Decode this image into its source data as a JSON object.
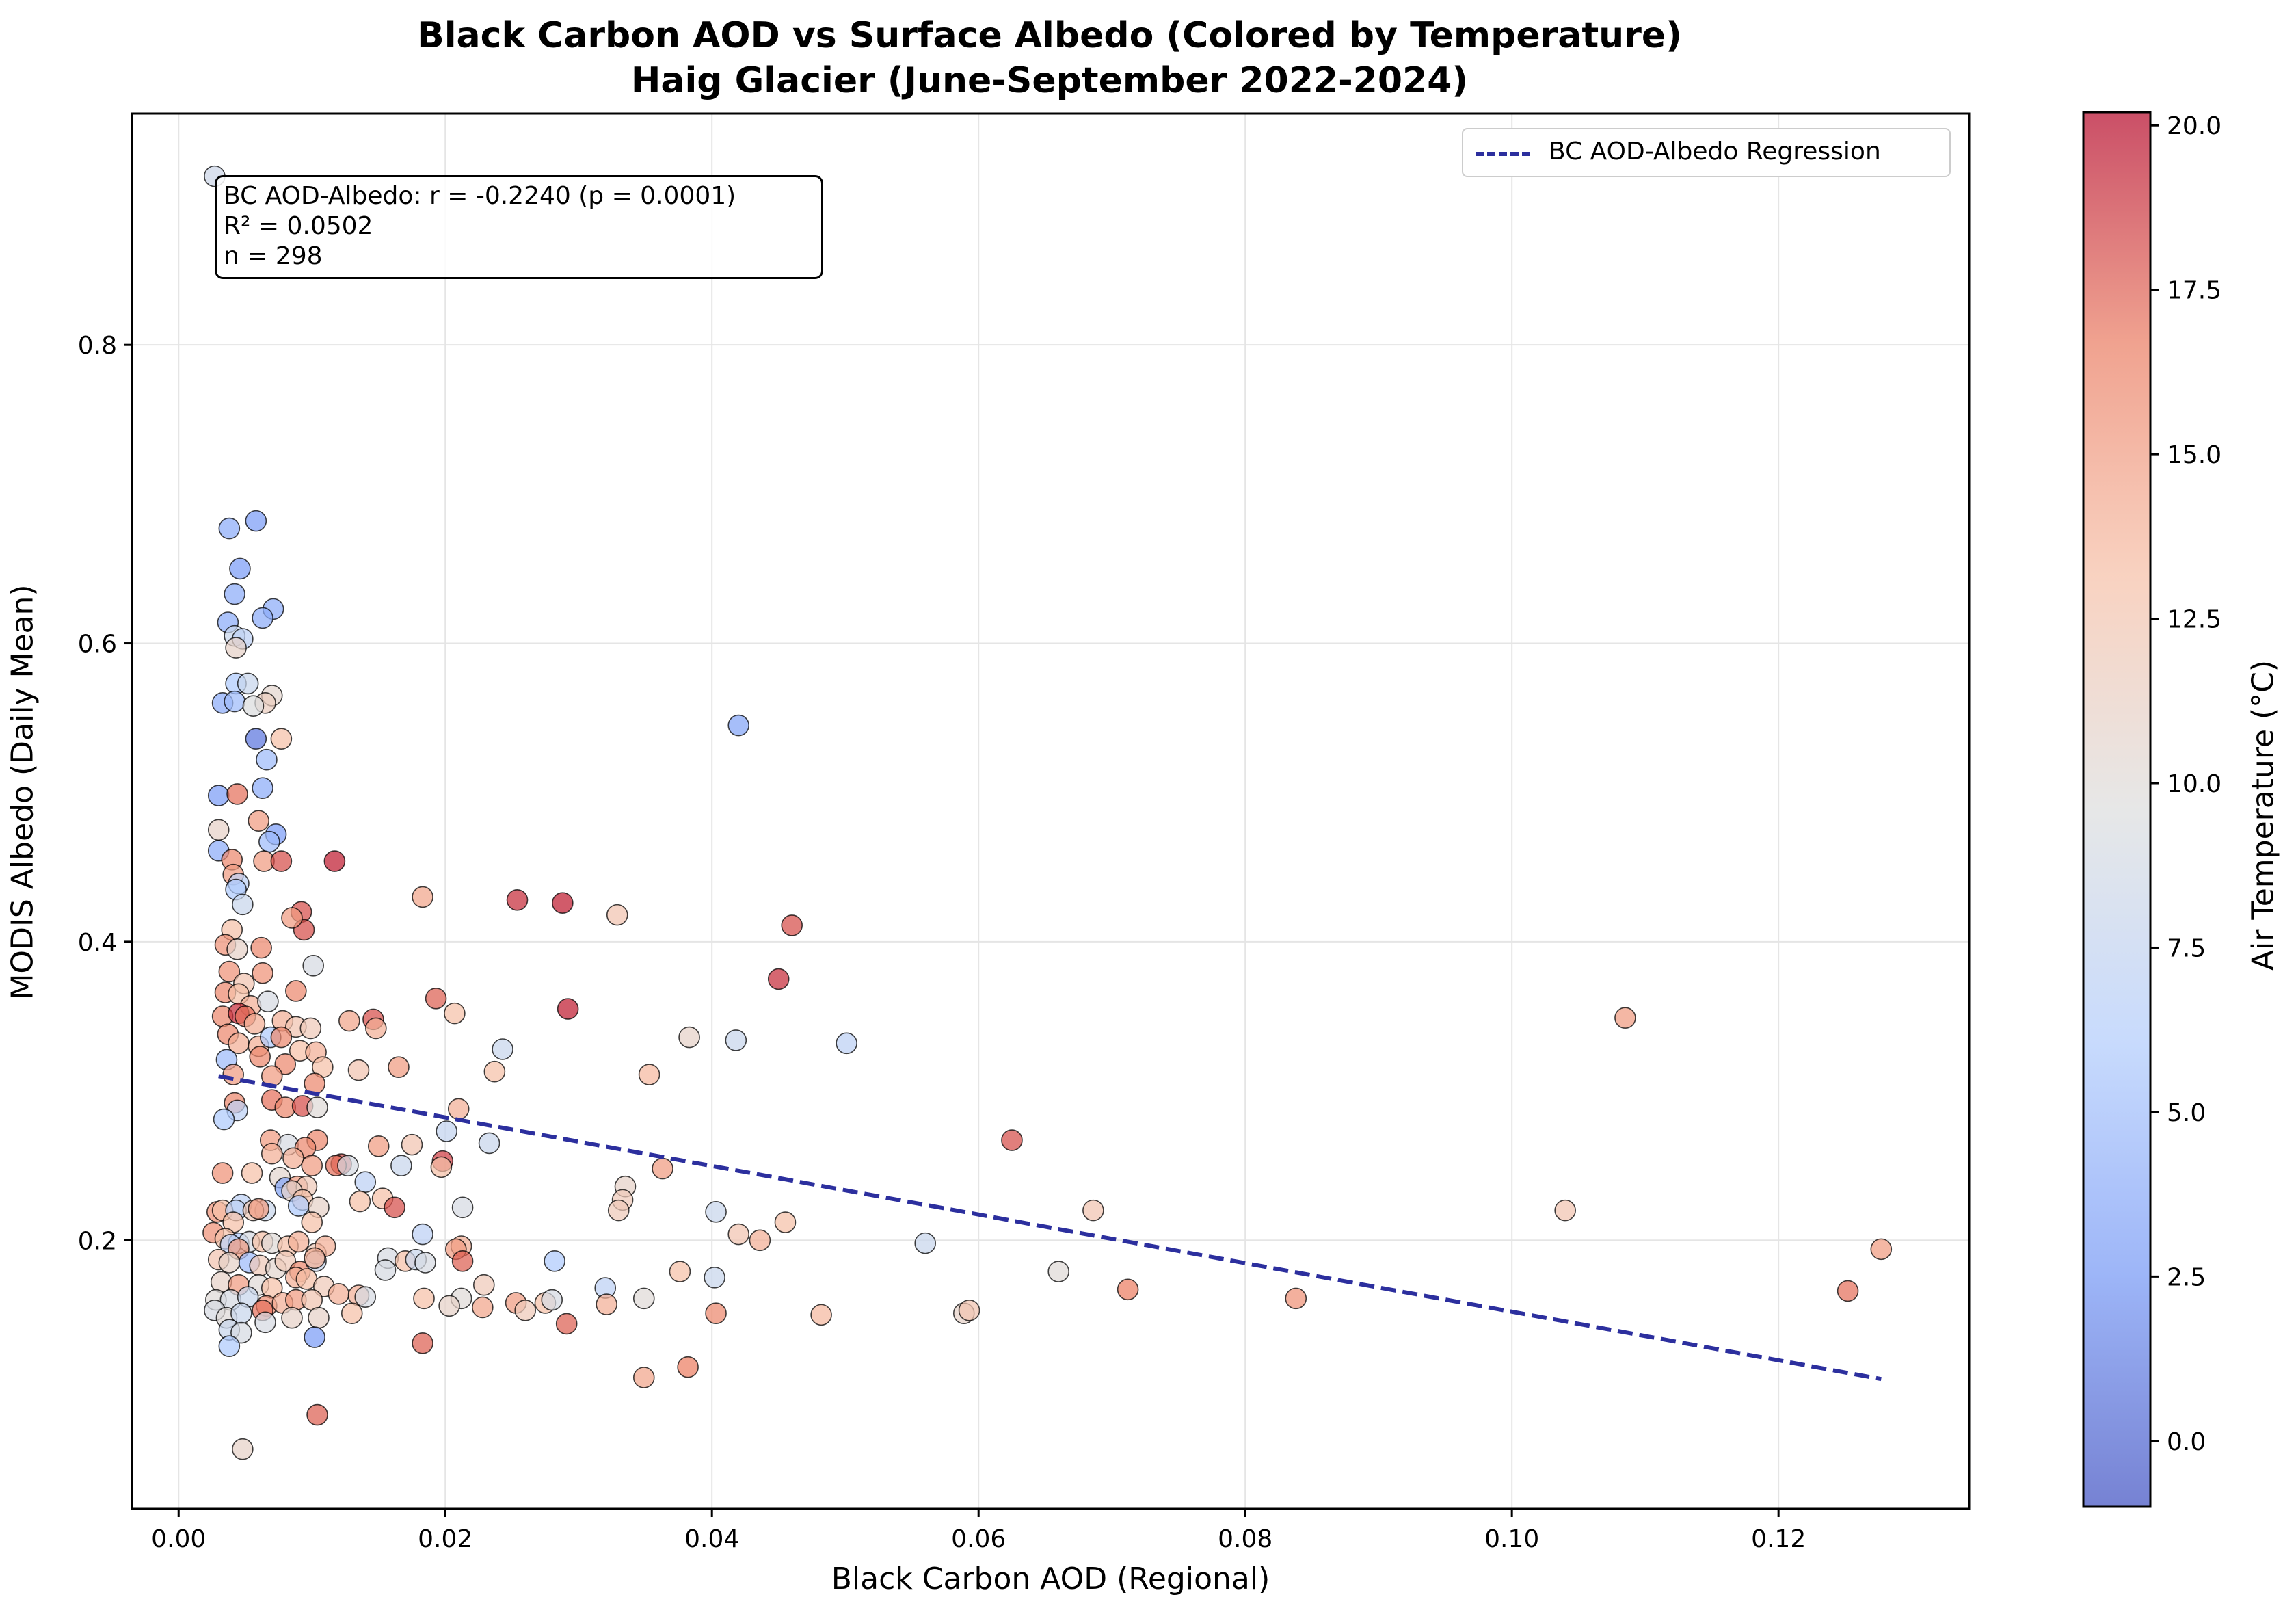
{
  "chart_data": {
    "type": "scatter",
    "title": "Black Carbon AOD vs Surface Albedo (Colored by Temperature)",
    "subtitle": "Haig Glacier (June-September 2022-2024)",
    "xlabel": "Black Carbon AOD (Regional)",
    "ylabel": "MODIS Albedo (Daily Mean)",
    "colorbar_label": "Air Temperature (°C)",
    "colormap": "coolwarm",
    "colormap_stops": [
      "#3b4cc0",
      "#7396f5",
      "#b0cbfc",
      "#dcdddd",
      "#f6bfa6",
      "#ea7b60",
      "#b40426"
    ],
    "colorbar_range": [
      -1.0,
      20.2
    ],
    "colorbar_ticks": [
      "0.0",
      "2.5",
      "5.0",
      "7.5",
      "10.0",
      "12.5",
      "15.0",
      "17.5",
      "20.0"
    ],
    "xlim": [
      -0.0035,
      0.1343
    ],
    "ylim": [
      0.02,
      0.955
    ],
    "x_ticks": [
      "0.00",
      "0.02",
      "0.04",
      "0.06",
      "0.08",
      "0.10",
      "0.12"
    ],
    "y_ticks": [
      "0.2",
      "0.4",
      "0.6",
      "0.8"
    ],
    "grid": true,
    "legend_position": "top-right",
    "legend": [
      {
        "label": "BC AOD-Albedo Regression",
        "color": "#2c2f9e",
        "style": "dashed"
      }
    ],
    "stats_lines": [
      "BC AOD-Albedo: r = -0.2240 (p = 0.0001)",
      "R² = 0.0502",
      "n = 298"
    ],
    "regression": {
      "x": [
        0.003,
        0.1277
      ],
      "y": [
        0.31,
        0.107
      ]
    },
    "points": [
      [
        0.0027,
        0.913,
        8.3
      ],
      [
        0.0058,
        0.682,
        3.0
      ],
      [
        0.0038,
        0.677,
        4.0
      ],
      [
        0.0046,
        0.65,
        3.0
      ],
      [
        0.0042,
        0.633,
        4.0
      ],
      [
        0.0071,
        0.623,
        4.0
      ],
      [
        0.0063,
        0.617,
        4.0
      ],
      [
        0.0037,
        0.614,
        4.0
      ],
      [
        0.0042,
        0.605,
        8.0
      ],
      [
        0.0048,
        0.603,
        7.0
      ],
      [
        0.0043,
        0.597,
        11.0
      ],
      [
        0.0043,
        0.573,
        6.0
      ],
      [
        0.0052,
        0.573,
        8.0
      ],
      [
        0.007,
        0.565,
        10.5
      ],
      [
        0.0033,
        0.56,
        4.0
      ],
      [
        0.0065,
        0.56,
        11.5
      ],
      [
        0.0042,
        0.561,
        5.0
      ],
      [
        0.0056,
        0.558,
        9.5
      ],
      [
        0.0058,
        0.536,
        1.0
      ],
      [
        0.0077,
        0.536,
        13.0
      ],
      [
        0.0066,
        0.522,
        5.0
      ],
      [
        0.003,
        0.498,
        3.0
      ],
      [
        0.0044,
        0.499,
        17.0
      ],
      [
        0.0063,
        0.503,
        4.0
      ],
      [
        0.006,
        0.481,
        15.0
      ],
      [
        0.0073,
        0.472,
        3.0
      ],
      [
        0.0068,
        0.467,
        5.0
      ],
      [
        0.003,
        0.475,
        11.0
      ],
      [
        0.003,
        0.461,
        4.0
      ],
      [
        0.004,
        0.455,
        16.0
      ],
      [
        0.0064,
        0.454,
        15.0
      ],
      [
        0.0077,
        0.454,
        18.0
      ],
      [
        0.0117,
        0.454,
        19.5
      ],
      [
        0.0041,
        0.445,
        15.0
      ],
      [
        0.0045,
        0.439,
        7.0
      ],
      [
        0.0043,
        0.435,
        6.0
      ],
      [
        0.0048,
        0.425,
        8.0
      ],
      [
        0.004,
        0.408,
        13.0
      ],
      [
        0.0092,
        0.42,
        18.0
      ],
      [
        0.0094,
        0.408,
        18.0
      ],
      [
        0.0085,
        0.416,
        15.0
      ],
      [
        0.0035,
        0.398,
        15.5
      ],
      [
        0.0044,
        0.395,
        11.0
      ],
      [
        0.0062,
        0.396,
        16.0
      ],
      [
        0.0101,
        0.384,
        9.0
      ],
      [
        0.0038,
        0.38,
        15.5
      ],
      [
        0.0049,
        0.372,
        12.5
      ],
      [
        0.0063,
        0.379,
        15.5
      ],
      [
        0.0035,
        0.366,
        16.0
      ],
      [
        0.0045,
        0.365,
        13.0
      ],
      [
        0.0054,
        0.357,
        14.0
      ],
      [
        0.0088,
        0.367,
        16.0
      ],
      [
        0.0067,
        0.36,
        9.0
      ],
      [
        0.0033,
        0.35,
        16.0
      ],
      [
        0.0045,
        0.352,
        19.0
      ],
      [
        0.005,
        0.35,
        17.0
      ],
      [
        0.0057,
        0.345,
        14.0
      ],
      [
        0.0078,
        0.347,
        14.0
      ],
      [
        0.0088,
        0.343,
        12.5
      ],
      [
        0.0099,
        0.342,
        12.0
      ],
      [
        0.0037,
        0.338,
        16.0
      ],
      [
        0.0045,
        0.332,
        14.0
      ],
      [
        0.006,
        0.33,
        14.0
      ],
      [
        0.0069,
        0.336,
        6.0
      ],
      [
        0.0077,
        0.336,
        16.0
      ],
      [
        0.0091,
        0.327,
        13.0
      ],
      [
        0.0103,
        0.326,
        14.0
      ],
      [
        0.0036,
        0.321,
        5.0
      ],
      [
        0.0061,
        0.323,
        16.0
      ],
      [
        0.008,
        0.318,
        16.0
      ],
      [
        0.0108,
        0.316,
        13.0
      ],
      [
        0.0135,
        0.314,
        12.5
      ],
      [
        0.0128,
        0.347,
        14.5
      ],
      [
        0.0146,
        0.348,
        18.0
      ],
      [
        0.0148,
        0.342,
        14.0
      ],
      [
        0.0165,
        0.316,
        15.0
      ],
      [
        0.0041,
        0.311,
        15.0
      ],
      [
        0.007,
        0.31,
        15.0
      ],
      [
        0.0102,
        0.305,
        16.0
      ],
      [
        0.0042,
        0.292,
        16.0
      ],
      [
        0.007,
        0.294,
        17.0
      ],
      [
        0.008,
        0.289,
        16.0
      ],
      [
        0.0093,
        0.29,
        18.0
      ],
      [
        0.0104,
        0.289,
        10.0
      ],
      [
        0.0044,
        0.287,
        7.0
      ],
      [
        0.0034,
        0.281,
        6.0
      ],
      [
        0.0069,
        0.267,
        15.0
      ],
      [
        0.0104,
        0.267,
        16.0
      ],
      [
        0.0082,
        0.264,
        9.0
      ],
      [
        0.0095,
        0.262,
        16.0
      ],
      [
        0.007,
        0.258,
        14.0
      ],
      [
        0.0086,
        0.255,
        14.0
      ],
      [
        0.01,
        0.25,
        15.0
      ],
      [
        0.0122,
        0.251,
        18.0
      ],
      [
        0.0118,
        0.25,
        17.0
      ],
      [
        0.0127,
        0.25,
        9.0
      ],
      [
        0.0033,
        0.245,
        15.5
      ],
      [
        0.0055,
        0.245,
        13.0
      ],
      [
        0.0076,
        0.242,
        10.5
      ],
      [
        0.008,
        0.235,
        3.5
      ],
      [
        0.0089,
        0.236,
        15.0
      ],
      [
        0.0096,
        0.236,
        12.0
      ],
      [
        0.014,
        0.239,
        7.0
      ],
      [
        0.0085,
        0.233,
        11.0
      ],
      [
        0.0093,
        0.227,
        13.0
      ],
      [
        0.0047,
        0.224,
        7.0
      ],
      [
        0.0065,
        0.22,
        8.0
      ],
      [
        0.009,
        0.223,
        6.0
      ],
      [
        0.0105,
        0.222,
        11.0
      ],
      [
        0.0136,
        0.226,
        13.0
      ],
      [
        0.0153,
        0.228,
        13.0
      ],
      [
        0.0162,
        0.222,
        18.0
      ],
      [
        0.0029,
        0.219,
        15.5
      ],
      [
        0.0033,
        0.22,
        13.0
      ],
      [
        0.0043,
        0.22,
        7.0
      ],
      [
        0.0056,
        0.22,
        12.0
      ],
      [
        0.006,
        0.221,
        15.0
      ],
      [
        0.01,
        0.212,
        13.0
      ],
      [
        0.0041,
        0.212,
        13.0
      ],
      [
        0.0026,
        0.205,
        15.5
      ],
      [
        0.0035,
        0.201,
        13.0
      ],
      [
        0.0045,
        0.198,
        6.0
      ],
      [
        0.0053,
        0.199,
        9.0
      ],
      [
        0.0063,
        0.199,
        13.0
      ],
      [
        0.007,
        0.198,
        10.0
      ],
      [
        0.0082,
        0.196,
        13.0
      ],
      [
        0.009,
        0.199,
        14.0
      ],
      [
        0.0103,
        0.191,
        12.0
      ],
      [
        0.011,
        0.196,
        14.0
      ],
      [
        0.0039,
        0.197,
        7.0
      ],
      [
        0.0045,
        0.194,
        15.0
      ],
      [
        0.003,
        0.187,
        12.5
      ],
      [
        0.0038,
        0.185,
        11.0
      ],
      [
        0.0053,
        0.185,
        5.0
      ],
      [
        0.0061,
        0.183,
        12.0
      ],
      [
        0.0073,
        0.181,
        10.5
      ],
      [
        0.008,
        0.186,
        12.0
      ],
      [
        0.0091,
        0.179,
        16.0
      ],
      [
        0.0103,
        0.186,
        8.0
      ],
      [
        0.0102,
        0.188,
        14.0
      ],
      [
        0.0032,
        0.172,
        11.0
      ],
      [
        0.0045,
        0.17,
        15.0
      ],
      [
        0.006,
        0.17,
        10.0
      ],
      [
        0.007,
        0.168,
        13.0
      ],
      [
        0.0088,
        0.175,
        14.0
      ],
      [
        0.0096,
        0.174,
        13.0
      ],
      [
        0.0109,
        0.169,
        12.0
      ],
      [
        0.012,
        0.164,
        14.0
      ],
      [
        0.0135,
        0.163,
        14.0
      ],
      [
        0.0028,
        0.16,
        10.0
      ],
      [
        0.0039,
        0.16,
        9.0
      ],
      [
        0.0052,
        0.162,
        8.0
      ],
      [
        0.0066,
        0.156,
        15.5
      ],
      [
        0.0078,
        0.158,
        14.0
      ],
      [
        0.0088,
        0.16,
        15.0
      ],
      [
        0.01,
        0.16,
        12.5
      ],
      [
        0.014,
        0.162,
        9.0
      ],
      [
        0.0027,
        0.153,
        9.0
      ],
      [
        0.0036,
        0.148,
        10.0
      ],
      [
        0.0047,
        0.151,
        8.0
      ],
      [
        0.0063,
        0.153,
        17.0
      ],
      [
        0.0085,
        0.148,
        11.0
      ],
      [
        0.0105,
        0.148,
        11.0
      ],
      [
        0.013,
        0.151,
        13.0
      ],
      [
        0.0038,
        0.14,
        8.0
      ],
      [
        0.0047,
        0.138,
        9.0
      ],
      [
        0.0065,
        0.145,
        9.0
      ],
      [
        0.0102,
        0.135,
        3.0
      ],
      [
        0.0038,
        0.129,
        6.0
      ],
      [
        0.0104,
        0.083,
        17.5
      ],
      [
        0.0048,
        0.06,
        11.0
      ],
      [
        0.0183,
        0.43,
        14.5
      ],
      [
        0.0254,
        0.428,
        19.0
      ],
      [
        0.0288,
        0.426,
        19.5
      ],
      [
        0.0329,
        0.418,
        12.5
      ],
      [
        0.046,
        0.411,
        18.0
      ],
      [
        0.045,
        0.375,
        19.0
      ],
      [
        0.0193,
        0.362,
        17.5
      ],
      [
        0.0207,
        0.352,
        13.0
      ],
      [
        0.0292,
        0.355,
        19.5
      ],
      [
        0.0383,
        0.336,
        11.0
      ],
      [
        0.0418,
        0.334,
        8.0
      ],
      [
        0.0501,
        0.332,
        7.0
      ],
      [
        0.0243,
        0.328,
        8.0
      ],
      [
        0.0237,
        0.313,
        13.0
      ],
      [
        0.0353,
        0.311,
        13.5
      ],
      [
        0.021,
        0.288,
        14.0
      ],
      [
        0.0201,
        0.273,
        7.5
      ],
      [
        0.0233,
        0.265,
        8.0
      ],
      [
        0.0175,
        0.264,
        12.5
      ],
      [
        0.015,
        0.263,
        15.0
      ],
      [
        0.0198,
        0.253,
        18.5
      ],
      [
        0.0167,
        0.25,
        8.0
      ],
      [
        0.0197,
        0.249,
        13.0
      ],
      [
        0.0363,
        0.248,
        15.0
      ],
      [
        0.0335,
        0.236,
        11.0
      ],
      [
        0.0333,
        0.227,
        12.0
      ],
      [
        0.033,
        0.22,
        12.0
      ],
      [
        0.0403,
        0.219,
        8.0
      ],
      [
        0.0455,
        0.212,
        13.0
      ],
      [
        0.042,
        0.204,
        12.5
      ],
      [
        0.0213,
        0.222,
        9.0
      ],
      [
        0.0183,
        0.204,
        7.0
      ],
      [
        0.0436,
        0.2,
        14.0
      ],
      [
        0.0212,
        0.196,
        14.0
      ],
      [
        0.0208,
        0.194,
        15.0
      ],
      [
        0.0213,
        0.186,
        17.5
      ],
      [
        0.0157,
        0.188,
        9.0
      ],
      [
        0.017,
        0.186,
        13.0
      ],
      [
        0.0178,
        0.187,
        8.0
      ],
      [
        0.0185,
        0.185,
        9.0
      ],
      [
        0.0282,
        0.186,
        6.0
      ],
      [
        0.0155,
        0.18,
        9.0
      ],
      [
        0.0376,
        0.179,
        13.0
      ],
      [
        0.0402,
        0.175,
        8.0
      ],
      [
        0.0229,
        0.17,
        12.0
      ],
      [
        0.032,
        0.168,
        7.0
      ],
      [
        0.0184,
        0.161,
        13.0
      ],
      [
        0.0212,
        0.161,
        10.0
      ],
      [
        0.0203,
        0.156,
        11.0
      ],
      [
        0.0228,
        0.155,
        14.5
      ],
      [
        0.0253,
        0.158,
        15.0
      ],
      [
        0.026,
        0.153,
        12.0
      ],
      [
        0.0275,
        0.158,
        13.0
      ],
      [
        0.028,
        0.16,
        9.0
      ],
      [
        0.0321,
        0.157,
        14.0
      ],
      [
        0.0349,
        0.161,
        10.0
      ],
      [
        0.0403,
        0.151,
        16.0
      ],
      [
        0.0291,
        0.144,
        17.5
      ],
      [
        0.0183,
        0.131,
        17.5
      ],
      [
        0.0349,
        0.108,
        14.5
      ],
      [
        0.0382,
        0.115,
        16.5
      ],
      [
        0.042,
        0.545,
        3.5
      ],
      [
        0.0482,
        0.15,
        13.5
      ],
      [
        0.056,
        0.198,
        8.0
      ],
      [
        0.0589,
        0.151,
        11.0
      ],
      [
        0.0593,
        0.153,
        12.5
      ],
      [
        0.0625,
        0.267,
        18.0
      ],
      [
        0.066,
        0.179,
        10.0
      ],
      [
        0.0686,
        0.22,
        12.5
      ],
      [
        0.0712,
        0.167,
        16.5
      ],
      [
        0.0838,
        0.161,
        15.5
      ],
      [
        0.104,
        0.22,
        12.5
      ],
      [
        0.1085,
        0.349,
        15.0
      ],
      [
        0.1252,
        0.166,
        17.0
      ],
      [
        0.1277,
        0.194,
        15.0
      ]
    ]
  }
}
